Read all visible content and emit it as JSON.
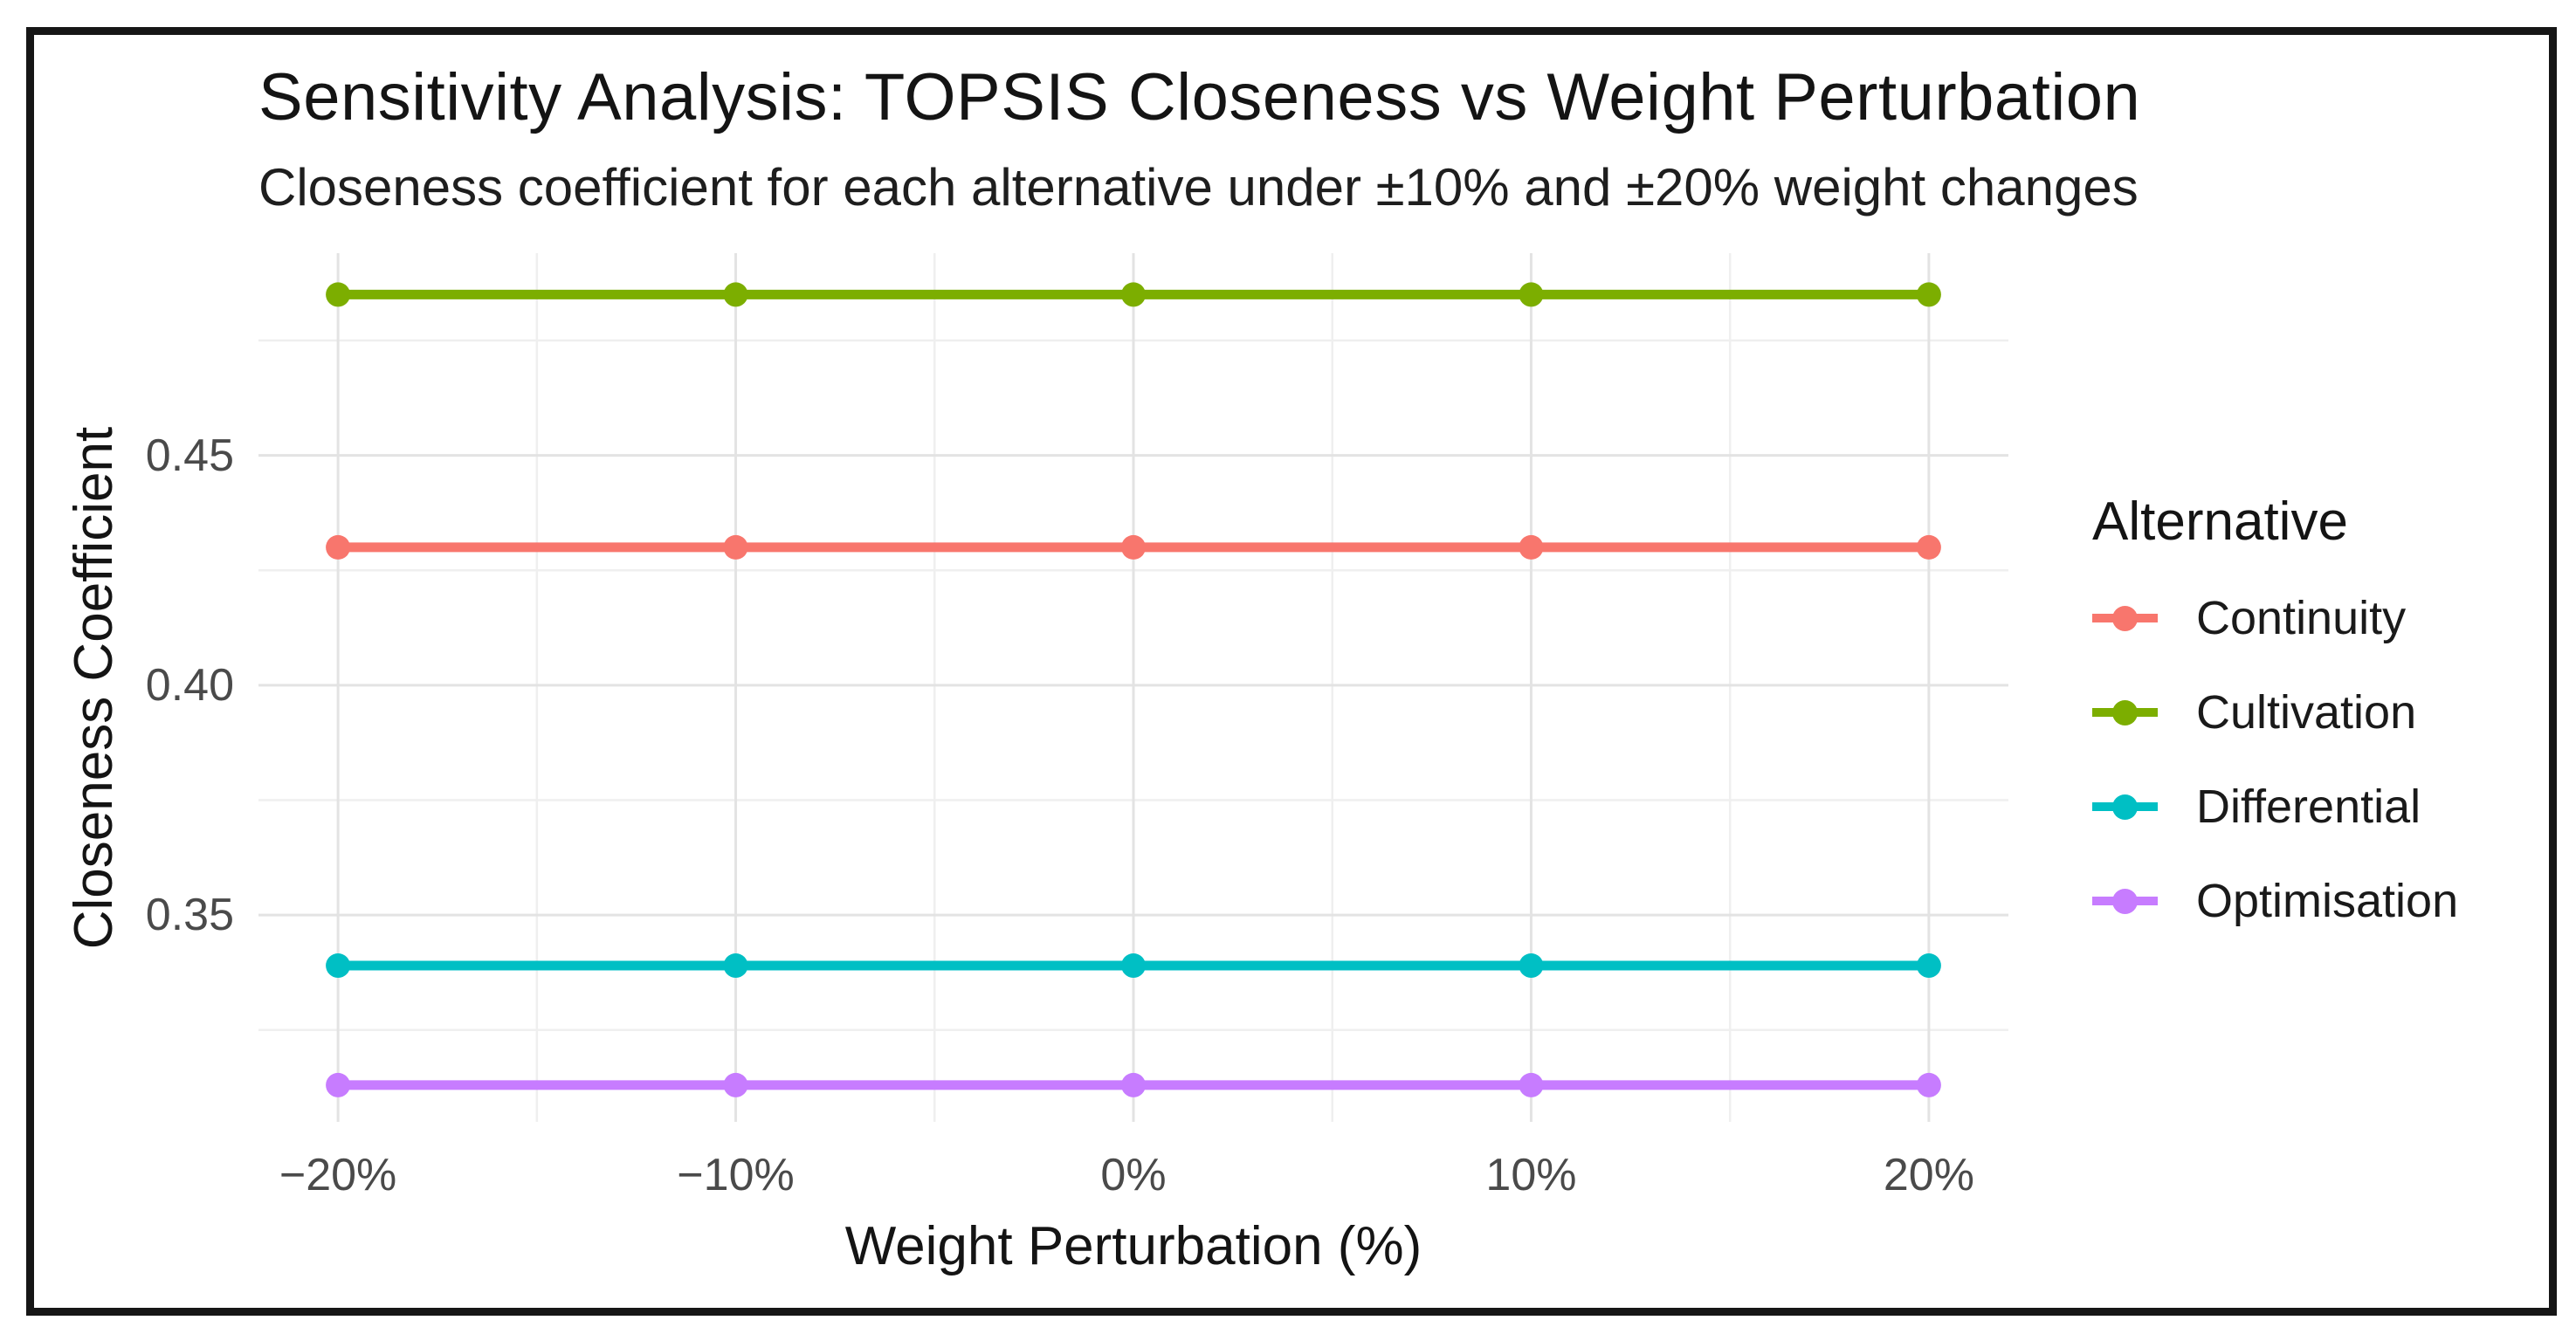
{
  "figure": {
    "title": "Sensitivity Analysis: TOPSIS Closeness vs Weight Perturbation",
    "subtitle": "Closeness coefficient for each alternative under ±10% and ±20% weight changes"
  },
  "chart_data": {
    "type": "line",
    "title": "Sensitivity Analysis: TOPSIS Closeness vs Weight Perturbation",
    "subtitle": "Closeness coefficient for each alternative under ±10% and ±20% weight changes",
    "xlabel": "Weight Perturbation (%)",
    "ylabel": "Closeness Coefficient",
    "x": [
      -20,
      -10,
      0,
      10,
      20
    ],
    "x_tick_labels": [
      "−20%",
      "−10%",
      "0%",
      "10%",
      "20%"
    ],
    "x_minor_ticks": [
      -15,
      -5,
      5,
      15
    ],
    "y_ticks": [
      0.35,
      0.4,
      0.45
    ],
    "y_tick_labels": [
      "0.35",
      "0.40",
      "0.45"
    ],
    "y_minor_ticks": [
      0.325,
      0.375,
      0.425,
      0.475
    ],
    "xlim": [
      -22,
      22
    ],
    "ylim": [
      0.305,
      0.494
    ],
    "grid": true,
    "legend_position": "right",
    "legend_title": "Alternative",
    "series": [
      {
        "name": "Continuity",
        "color": "#F8766D",
        "values": [
          0.43,
          0.43,
          0.43,
          0.43,
          0.43
        ]
      },
      {
        "name": "Cultivation",
        "color": "#7CAE00",
        "values": [
          0.485,
          0.485,
          0.485,
          0.485,
          0.485
        ]
      },
      {
        "name": "Differential",
        "color": "#00BFC4",
        "values": [
          0.339,
          0.339,
          0.339,
          0.339,
          0.339
        ]
      },
      {
        "name": "Optimisation",
        "color": "#C77CFF",
        "values": [
          0.313,
          0.313,
          0.313,
          0.313,
          0.313
        ]
      }
    ],
    "style": {
      "grid_major_color": "#E3E3E3",
      "grid_minor_color": "#EFEFEF",
      "tick_label_color": "#4a4a4a",
      "text_color": "#141414",
      "frame_border_color": "#161616",
      "line_width": 11,
      "point_radius": 14
    }
  }
}
